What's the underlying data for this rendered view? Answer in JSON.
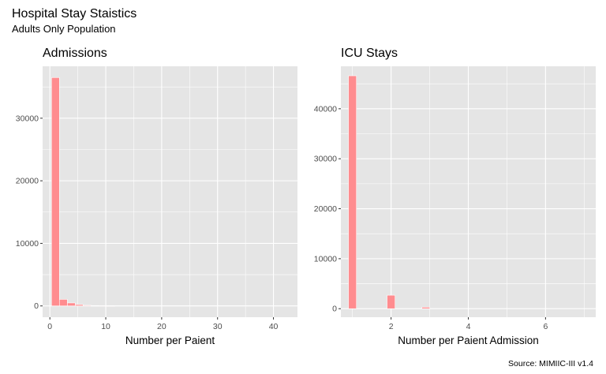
{
  "figure": {
    "title": "Hospital Stay Staistics",
    "subtitle": "Adults Only Population",
    "caption": "Source: MIMIIC-III v1.4"
  },
  "colors": {
    "panel_background": "#e5e5e5",
    "grid": "#ffffff",
    "bar_fill": "#ff8c8f",
    "bar_outline": "#ffffff",
    "tick_text": "#4d4d4d"
  },
  "chart_data": [
    {
      "type": "bar",
      "title": "Admissions",
      "xlabel": "Number per Paient",
      "ylabel": "",
      "xlim": [
        -1.3,
        44.3
      ],
      "ylim": [
        -1800,
        38300
      ],
      "x_ticks": [
        0,
        10,
        20,
        30,
        40
      ],
      "x_tick_labels": [
        "0",
        "10",
        "20",
        "30",
        "40"
      ],
      "y_ticks": [
        0,
        10000,
        20000,
        30000
      ],
      "y_tick_labels": [
        "0",
        "10000",
        "20000",
        "30000"
      ],
      "grid": true,
      "bin_width": 1.41,
      "bins_x": [
        1.0,
        2.41,
        3.83,
        5.24,
        6.66,
        8.07,
        9.48,
        10.9
      ],
      "values": [
        36500,
        1050,
        480,
        220,
        100,
        60,
        35,
        20
      ]
    },
    {
      "type": "bar",
      "title": "ICU Stays",
      "xlabel": "Number per Paient Admission",
      "ylabel": "",
      "xlim": [
        0.7,
        7.3
      ],
      "ylim": [
        -1700,
        48500
      ],
      "x_ticks": [
        2,
        4,
        6
      ],
      "x_tick_labels": [
        "2",
        "4",
        "6"
      ],
      "y_ticks": [
        0,
        10000,
        20000,
        30000,
        40000
      ],
      "y_tick_labels": [
        "0",
        "10000",
        "20000",
        "30000",
        "40000"
      ],
      "grid": true,
      "bin_width": 0.2069,
      "bins_x": [
        1.0,
        2.0,
        2.9
      ],
      "values": [
        46600,
        2700,
        300
      ]
    }
  ]
}
